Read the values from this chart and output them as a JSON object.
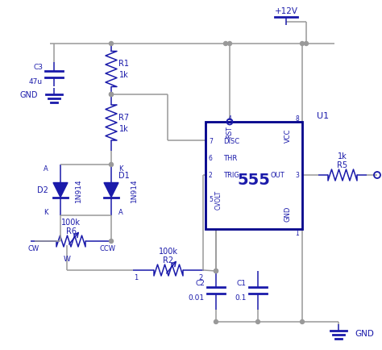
{
  "fig_width": 4.74,
  "fig_height": 4.35,
  "dpi": 100,
  "bg_color": "#ffffff",
  "wire_color": "#999999",
  "blue_color": "#1a1aaa",
  "ic_border_color": "#00008B",
  "ic_label": "555",
  "ic_name": "U1",
  "vcc_label": "+12V",
  "gnd_label": "GND",
  "line_width": 1.1
}
